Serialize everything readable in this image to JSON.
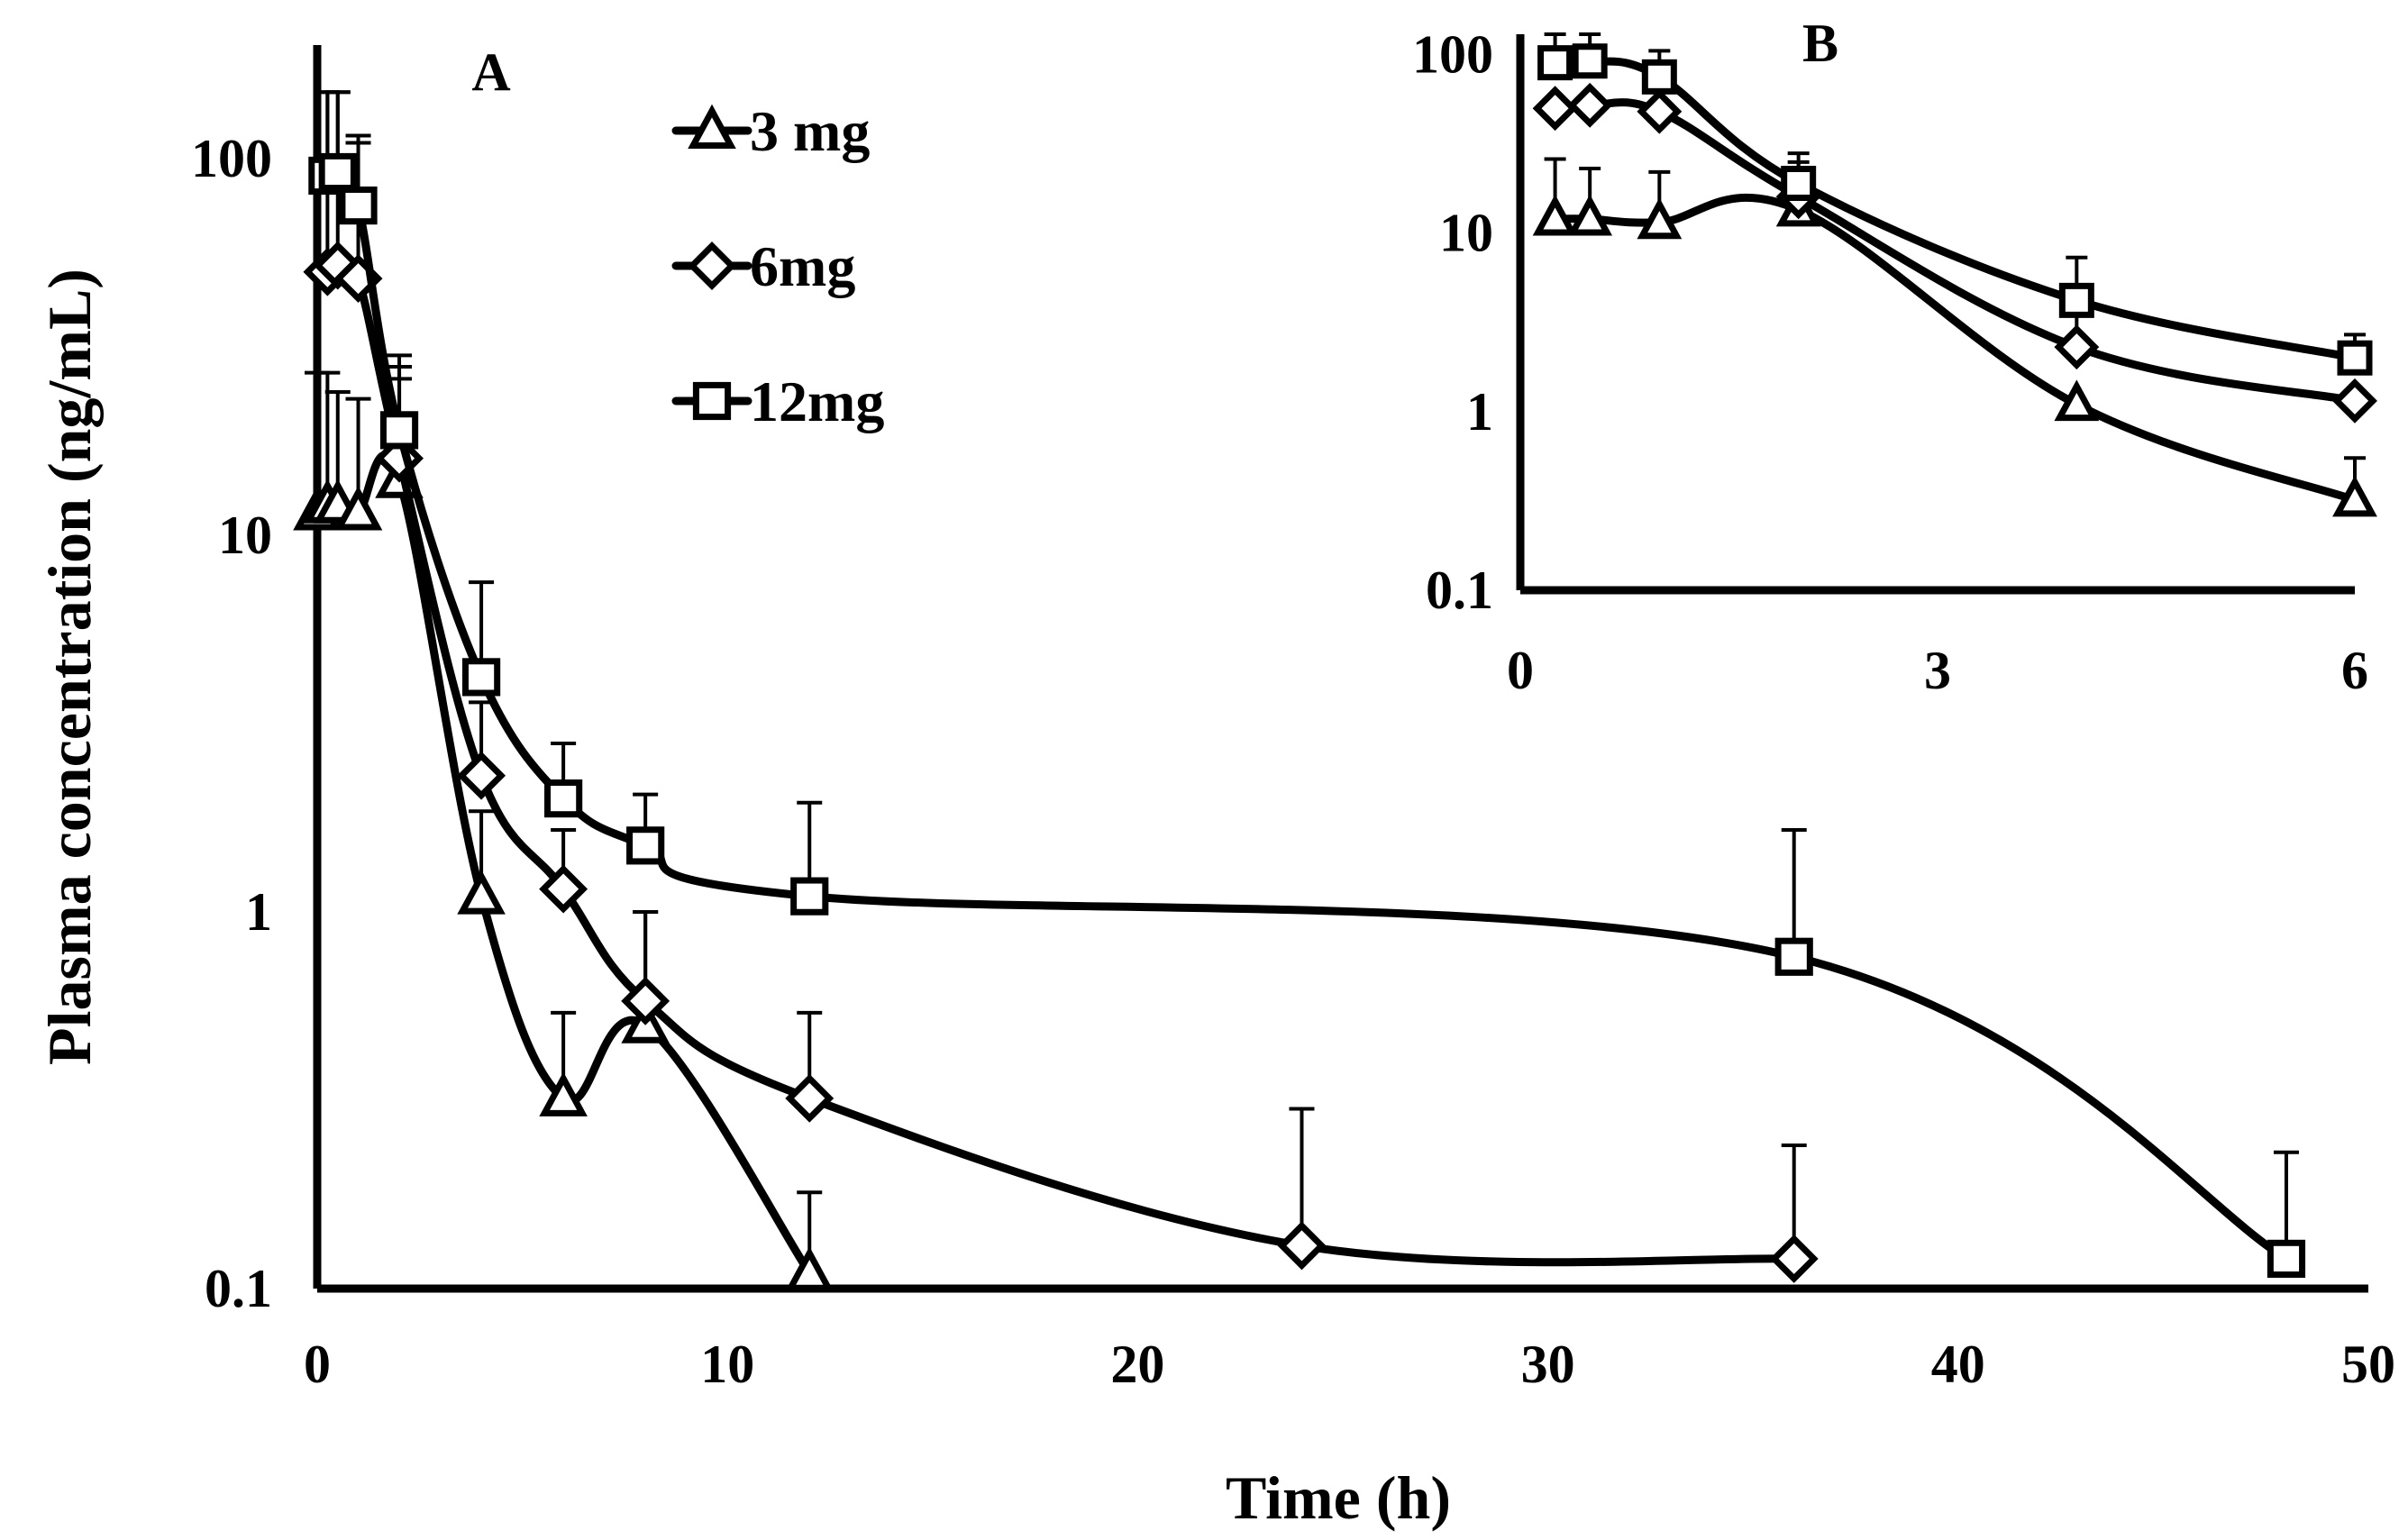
{
  "chart_data": [
    {
      "panel": "A",
      "type": "line",
      "scale_y": "log",
      "xlabel": "Time (h)",
      "ylabel": "Plasma concentration (ng/mL)",
      "xlim": [
        0,
        50
      ],
      "ylim": [
        0.1,
        200
      ],
      "xticks": [
        "0",
        "10",
        "20",
        "30",
        "40",
        "50"
      ],
      "yticks": [
        "0.1",
        "1",
        "10",
        "100"
      ],
      "legend_position": "top-center",
      "series": [
        {
          "name": "3 mg",
          "marker": "triangle",
          "x": [
            0,
            0.25,
            0.5,
            1,
            2,
            4,
            6,
            8,
            12
          ],
          "y": [
            11.5,
            12,
            12,
            11.5,
            14,
            1.1,
            0.32,
            0.5,
            0.11
          ],
          "err_upper": [
            27,
            27,
            24,
            23,
            26,
            1.85,
            0.54,
            1.0,
            0.18
          ]
        },
        {
          "name": "6mg",
          "marker": "diamond",
          "x": [
            0.25,
            0.5,
            1,
            2,
            4,
            6,
            8,
            12,
            24,
            36
          ],
          "y": [
            50,
            52,
            48,
            16,
            2.3,
            1.15,
            0.58,
            0.32,
            0.13,
            0.12
          ],
          "err_upper": [
            150,
            150,
            110,
            28,
            3.6,
            1.65,
            1.0,
            0.54,
            0.3,
            0.24
          ]
        },
        {
          "name": "12mg",
          "marker": "square",
          "x": [
            0.25,
            0.5,
            1,
            2,
            4,
            6,
            8,
            12,
            36,
            48
          ],
          "y": [
            90,
            92,
            75,
            19,
            4.2,
            2.0,
            1.5,
            1.1,
            0.76,
            0.12
          ],
          "err_upper": [
            150,
            150,
            115,
            30,
            7.5,
            2.8,
            2.05,
            1.95,
            1.65,
            0.23
          ]
        }
      ]
    },
    {
      "panel": "B",
      "type": "line",
      "scale_y": "log",
      "xlim": [
        0,
        6
      ],
      "ylim": [
        0.1,
        130
      ],
      "xticks": [
        "0",
        "3",
        "6"
      ],
      "yticks": [
        "0.1",
        "1",
        "10",
        "100"
      ],
      "series": [
        {
          "name": "3 mg",
          "marker": "triangle",
          "x": [
            0.25,
            0.5,
            1,
            2,
            4,
            6
          ],
          "y": [
            12,
            12,
            11.5,
            13.5,
            1.1,
            0.32
          ],
          "err_upper": [
            26,
            23,
            22,
            25,
            null,
            0.55
          ]
        },
        {
          "name": "6mg",
          "marker": "diamond",
          "x": [
            0.25,
            0.5,
            1,
            2,
            4,
            6
          ],
          "y": [
            50,
            52,
            48,
            16,
            2.3,
            1.15
          ],
          "err_upper": [
            null,
            null,
            null,
            null,
            3.5,
            null
          ]
        },
        {
          "name": "12mg",
          "marker": "square",
          "x": [
            0.25,
            0.5,
            1,
            2,
            4,
            6
          ],
          "y": [
            90,
            92,
            75,
            19,
            4.2,
            2.0
          ],
          "err_upper": [
            130,
            130,
            105,
            28,
            7.3,
            2.7
          ]
        }
      ]
    }
  ]
}
